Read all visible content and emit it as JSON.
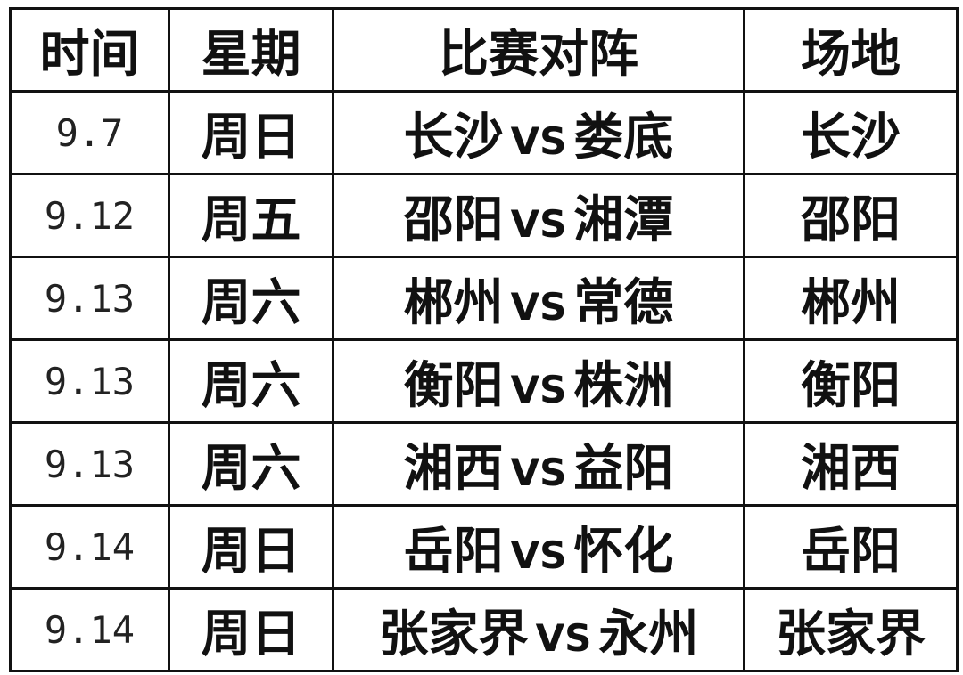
{
  "table": {
    "headers": [
      "时间",
      "星期",
      "比赛对阵",
      "场地"
    ],
    "rows": [
      {
        "date": "9.7",
        "weekday": "周日",
        "home": "长沙",
        "vs": "VS",
        "away": "娄底",
        "venue": "长沙"
      },
      {
        "date": "9.12",
        "weekday": "周五",
        "home": "邵阳",
        "vs": "VS",
        "away": "湘潭",
        "venue": "邵阳"
      },
      {
        "date": "9.13",
        "weekday": "周六",
        "home": "郴州",
        "vs": "VS",
        "away": "常德",
        "venue": "郴州"
      },
      {
        "date": "9.13",
        "weekday": "周六",
        "home": "衡阳",
        "vs": "VS",
        "away": "株洲",
        "venue": "衡阳"
      },
      {
        "date": "9.13",
        "weekday": "周六",
        "home": "湘西",
        "vs": "VS",
        "away": "益阳",
        "venue": "湘西"
      },
      {
        "date": "9.14",
        "weekday": "周日",
        "home": "岳阳",
        "vs": "VS",
        "away": "怀化",
        "venue": "岳阳"
      },
      {
        "date": "9.14",
        "weekday": "周日",
        "home": "张家界",
        "vs": "VS",
        "away": "永州",
        "venue": "张家界"
      }
    ]
  }
}
